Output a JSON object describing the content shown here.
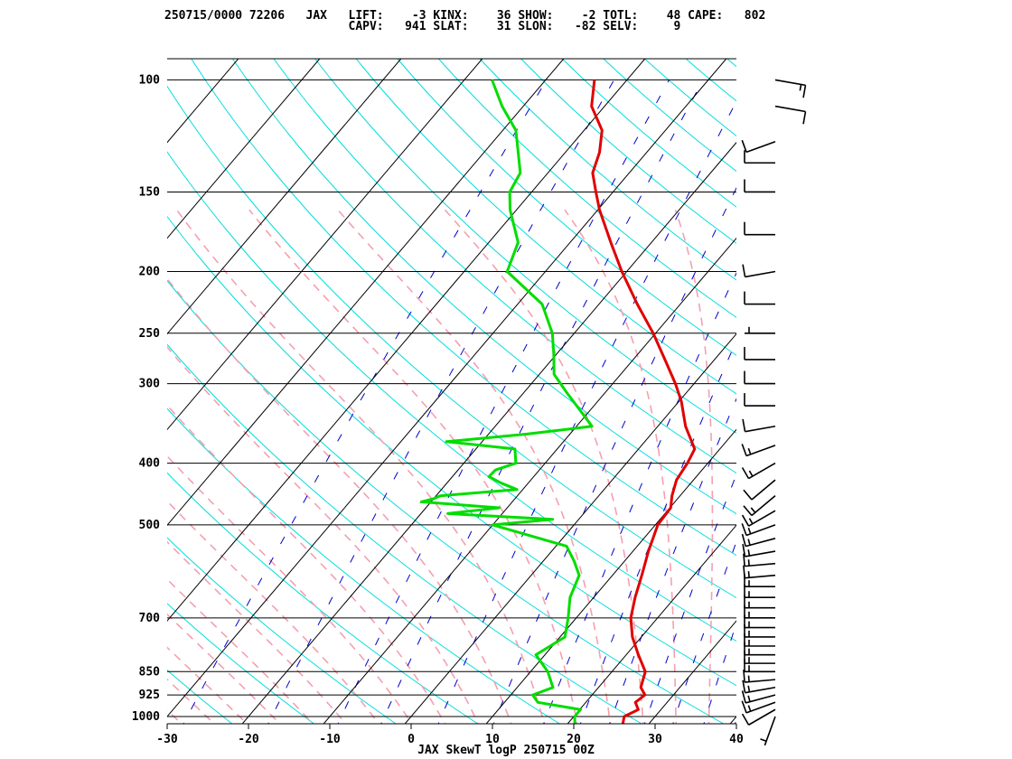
{
  "header": {
    "line1": "250715/0000 72206   JAX   LIFT:    -3 KINX:    36 SHOW:    -2 TOTL:    48 CAPE:   802",
    "line2": "                          CAPV:   941 SLAT:    31 SLON:   -82 SELV:     9"
  },
  "chart_data": {
    "type": "skewt",
    "title": "JAX SkewT logP 250715 00Z",
    "station": "JAX",
    "station_id": "72206",
    "indices": {
      "LIFT": -3,
      "KINX": 36,
      "SHOW": -2,
      "TOTL": 48,
      "CAPE": 802,
      "CAPV": 941,
      "SLAT": 31,
      "SLON": -82,
      "SELV": 9
    },
    "pressure_ticks": [
      100,
      150,
      200,
      250,
      300,
      400,
      500,
      700,
      850,
      925,
      1000
    ],
    "temperature_ticks": [
      -30,
      -20,
      -10,
      0,
      10,
      20,
      30,
      40
    ],
    "xlim": [
      -30,
      40
    ],
    "ylim": [
      1050,
      100
    ],
    "colors": {
      "temperature": "#e00000",
      "dewpoint": "#00dd00",
      "isotherm": "#000000",
      "dry_adiabat": "#00dddd",
      "moist_adiabat": "#f4a0b0",
      "mixing_ratio": "#0000cc",
      "barb": "#000000"
    },
    "temperature_profile": [
      [
        1050,
        27.3
      ],
      [
        1000,
        26.2
      ],
      [
        975,
        27.2
      ],
      [
        950,
        26.1
      ],
      [
        925,
        26.5
      ],
      [
        900,
        25.2
      ],
      [
        850,
        24.1
      ],
      [
        800,
        21.5
      ],
      [
        750,
        18.9
      ],
      [
        700,
        16.7
      ],
      [
        650,
        15.1
      ],
      [
        600,
        13.6
      ],
      [
        550,
        11.9
      ],
      [
        500,
        10.3
      ],
      [
        470,
        10.1
      ],
      [
        450,
        9.0
      ],
      [
        425,
        7.9
      ],
      [
        400,
        7.5
      ],
      [
        380,
        6.9
      ],
      [
        350,
        3.4
      ],
      [
        320,
        0.3
      ],
      [
        300,
        -2.3
      ],
      [
        275,
        -6.1
      ],
      [
        250,
        -10.3
      ],
      [
        225,
        -15.3
      ],
      [
        200,
        -20.6
      ],
      [
        180,
        -25.0
      ],
      [
        160,
        -29.8
      ],
      [
        150,
        -32.1
      ],
      [
        140,
        -34.5
      ],
      [
        130,
        -35.8
      ],
      [
        120,
        -37.8
      ],
      [
        110,
        -41.6
      ],
      [
        100,
        -44.0
      ]
    ],
    "dewpoint_profile": [
      [
        1050,
        21.6
      ],
      [
        1000,
        20.1
      ],
      [
        975,
        20.1
      ],
      [
        950,
        14.1
      ],
      [
        925,
        12.7
      ],
      [
        900,
        14.4
      ],
      [
        850,
        12.1
      ],
      [
        800,
        8.9
      ],
      [
        750,
        10.6
      ],
      [
        700,
        9.0
      ],
      [
        650,
        7.1
      ],
      [
        600,
        5.9
      ],
      [
        570,
        3.8
      ],
      [
        540,
        1.3
      ],
      [
        500,
        -10.0
      ],
      [
        490,
        -3.2
      ],
      [
        480,
        -16.7
      ],
      [
        470,
        -11.0
      ],
      [
        460,
        -21.2
      ],
      [
        455,
        -20.0
      ],
      [
        450,
        -19.5
      ],
      [
        440,
        -10.7
      ],
      [
        430,
        -13.3
      ],
      [
        420,
        -15.5
      ],
      [
        410,
        -15.4
      ],
      [
        400,
        -13.6
      ],
      [
        380,
        -15.2
      ],
      [
        370,
        -24.4
      ],
      [
        360,
        -15.3
      ],
      [
        350,
        -8.1
      ],
      [
        330,
        -11.3
      ],
      [
        310,
        -14.7
      ],
      [
        290,
        -18.2
      ],
      [
        270,
        -20.3
      ],
      [
        250,
        -22.7
      ],
      [
        225,
        -27.0
      ],
      [
        200,
        -34.7
      ],
      [
        180,
        -36.4
      ],
      [
        160,
        -40.8
      ],
      [
        150,
        -42.7
      ],
      [
        140,
        -43.4
      ],
      [
        130,
        -45.8
      ],
      [
        120,
        -48.4
      ],
      [
        110,
        -52.6
      ],
      [
        100,
        -56.6
      ]
    ],
    "wind_levels": [
      [
        1000,
        200,
        5
      ],
      [
        975,
        240,
        10
      ],
      [
        950,
        250,
        15
      ],
      [
        925,
        255,
        15
      ],
      [
        900,
        260,
        15
      ],
      [
        875,
        265,
        15
      ],
      [
        850,
        270,
        15
      ],
      [
        825,
        270,
        15
      ],
      [
        800,
        270,
        15
      ],
      [
        775,
        270,
        15
      ],
      [
        750,
        270,
        15
      ],
      [
        725,
        270,
        15
      ],
      [
        700,
        270,
        15
      ],
      [
        675,
        270,
        15
      ],
      [
        650,
        270,
        15
      ],
      [
        625,
        270,
        15
      ],
      [
        600,
        265,
        15
      ],
      [
        575,
        265,
        15
      ],
      [
        550,
        260,
        15
      ],
      [
        525,
        255,
        15
      ],
      [
        500,
        250,
        15
      ],
      [
        475,
        240,
        15
      ],
      [
        450,
        230,
        15
      ],
      [
        425,
        230,
        10
      ],
      [
        400,
        240,
        15
      ],
      [
        375,
        250,
        15
      ],
      [
        350,
        260,
        10
      ],
      [
        325,
        270,
        10
      ],
      [
        300,
        270,
        10
      ],
      [
        275,
        270,
        10
      ],
      [
        250,
        270,
        5
      ],
      [
        225,
        270,
        10
      ],
      [
        200,
        260,
        10
      ],
      [
        175,
        270,
        10
      ],
      [
        150,
        270,
        10
      ],
      [
        135,
        270,
        10
      ],
      [
        125,
        250,
        10
      ],
      [
        110,
        100,
        10
      ],
      [
        100,
        100,
        15
      ]
    ]
  }
}
